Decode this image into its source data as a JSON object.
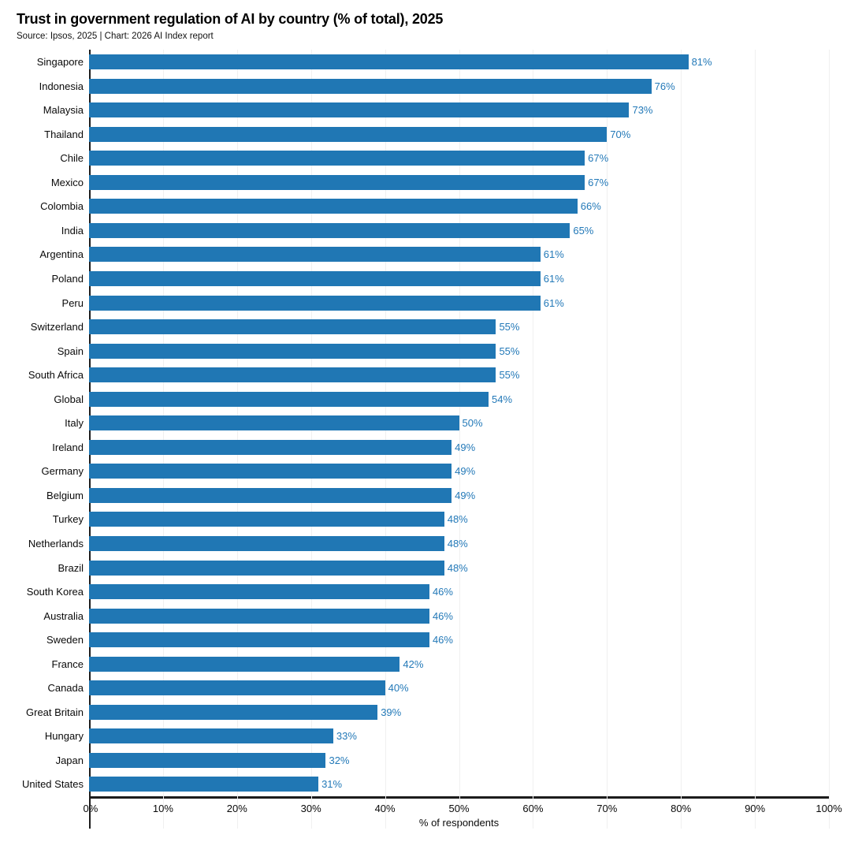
{
  "chart_data": {
    "type": "bar",
    "orientation": "horizontal",
    "title": "Trust in government regulation of AI by country (% of total), 2025",
    "subtitle": "Source: Ipsos, 2025 | Chart: 2026 AI Index report",
    "xlabel": "% of respondents",
    "xlim": [
      0,
      100
    ],
    "x_ticks": [
      "0%",
      "10%",
      "20%",
      "30%",
      "40%",
      "50%",
      "60%",
      "70%",
      "80%",
      "90%",
      "100%"
    ],
    "grid": "vertical-light",
    "legend": "none",
    "bar_color": "#2077b4",
    "value_label_color": "#2379b8",
    "value_suffix": "%",
    "categories": [
      "Singapore",
      "Indonesia",
      "Malaysia",
      "Thailand",
      "Chile",
      "Mexico",
      "Colombia",
      "India",
      "Argentina",
      "Poland",
      "Peru",
      "Switzerland",
      "Spain",
      "South Africa",
      "Global",
      "Italy",
      "Ireland",
      "Germany",
      "Belgium",
      "Turkey",
      "Netherlands",
      "Brazil",
      "South Korea",
      "Australia",
      "Sweden",
      "France",
      "Canada",
      "Great Britain",
      "Hungary",
      "Japan",
      "United States"
    ],
    "values": [
      81,
      76,
      73,
      70,
      67,
      67,
      66,
      65,
      61,
      61,
      61,
      55,
      55,
      55,
      54,
      50,
      49,
      49,
      49,
      48,
      48,
      48,
      46,
      46,
      46,
      42,
      40,
      39,
      33,
      32,
      31
    ]
  }
}
